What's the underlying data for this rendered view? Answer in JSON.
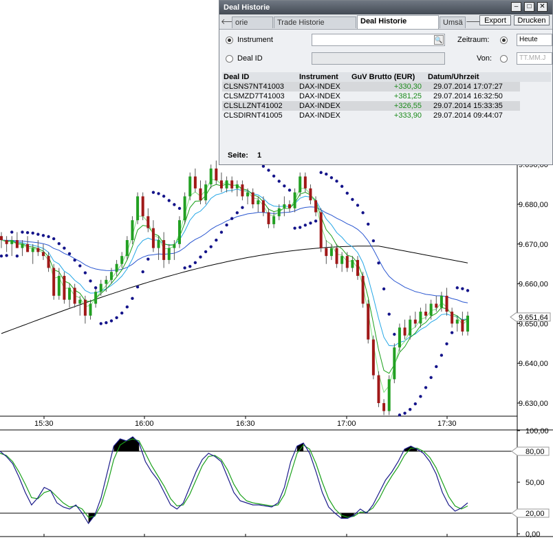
{
  "window": {
    "title": "Deal Historie",
    "buttons": {
      "minimize": "–",
      "maximize": "□",
      "close": "✕"
    }
  },
  "tabs": [
    {
      "label": "orie",
      "active": false
    },
    {
      "label": "Trade Historie",
      "active": false
    },
    {
      "label": "Deal Historie",
      "active": true
    },
    {
      "label": "Umsä",
      "active": false
    }
  ],
  "toolbar": {
    "prev": "🡐",
    "next": "🡒",
    "export_label": "Export",
    "print_label": "Drucken"
  },
  "filters": {
    "instrument_label": "Instrument",
    "instrument_value": "",
    "deal_id_label": "Deal ID",
    "zeitraum_label": "Zeitraum:",
    "zeitraum_option": "Heute",
    "von_label": "Von:",
    "von_placeholder": "TT.MM.J",
    "search_icon": "🔍"
  },
  "table": {
    "headers": [
      "Deal ID",
      "Instrument",
      "GuV Brutto (EUR)",
      "Datum/Uhrzeit"
    ],
    "rows": [
      [
        "CLSNS7NT41003",
        "DAX-INDEX",
        "+330,30",
        "29.07.2014 17:07:27"
      ],
      [
        "CLSMZD7T41003",
        "DAX-INDEX",
        "+381,25",
        "29.07.2014 16:32:50"
      ],
      [
        "CLSLLZNT41002",
        "DAX-INDEX",
        "+326,55",
        "29.07.2014 15:33:35"
      ],
      [
        "CLSDIRNT41005",
        "DAX-INDEX",
        "+333,90",
        "29.07.2014 09:44:07"
      ]
    ]
  },
  "paging": {
    "label": "Seite:",
    "value": "1"
  },
  "chart_data": {
    "type": "candlestick",
    "x_ticks": [
      "15:30",
      "16:00",
      "16:30",
      "17:00",
      "17:30"
    ],
    "y_ticks": [
      "9.630,00",
      "9.640,00",
      "9.650,00",
      "9.660,00",
      "9.670,00",
      "9.680,00",
      "9.690,00"
    ],
    "ylim": [
      9625,
      9695
    ],
    "current_price_label": "9.651,64",
    "current_price": 9651.64,
    "colors": {
      "up": "#22a022",
      "down": "#a01818",
      "sar": "#14148a",
      "ma_slow": "#000000",
      "ma_blue": "#2855d0",
      "ma_cyan": "#23a6e6",
      "ma_green": "#19a019"
    },
    "candles": [
      [
        9672,
        9673,
        9669,
        9671
      ],
      [
        9671,
        9672,
        9668,
        9670
      ],
      [
        9670,
        9672,
        9667,
        9671
      ],
      [
        9671,
        9673,
        9669,
        9669
      ],
      [
        9669,
        9671,
        9667,
        9670
      ],
      [
        9670,
        9672,
        9668,
        9668
      ],
      [
        9668,
        9670,
        9665,
        9669
      ],
      [
        9669,
        9671,
        9667,
        9668
      ],
      [
        9668,
        9670,
        9666,
        9667
      ],
      [
        9667,
        9668,
        9663,
        9664
      ],
      [
        9664,
        9665,
        9656,
        9657
      ],
      [
        9657,
        9664,
        9656,
        9662
      ],
      [
        9662,
        9663,
        9655,
        9656
      ],
      [
        9656,
        9660,
        9654,
        9659
      ],
      [
        9659,
        9660,
        9654,
        9655
      ],
      [
        9655,
        9657,
        9652,
        9656
      ],
      [
        9656,
        9657,
        9650,
        9652
      ],
      [
        9652,
        9656,
        9651,
        9655
      ],
      [
        9655,
        9659,
        9654,
        9658
      ],
      [
        9658,
        9661,
        9657,
        9660
      ],
      [
        9660,
        9662,
        9658,
        9661
      ],
      [
        9661,
        9664,
        9660,
        9663
      ],
      [
        9663,
        9666,
        9662,
        9665
      ],
      [
        9665,
        9668,
        9664,
        9667
      ],
      [
        9667,
        9672,
        9666,
        9671
      ],
      [
        9671,
        9677,
        9670,
        9676
      ],
      [
        9676,
        9683,
        9675,
        9682
      ],
      [
        9682,
        9683,
        9676,
        9677
      ],
      [
        9677,
        9679,
        9673,
        9674
      ],
      [
        9674,
        9676,
        9668,
        9669
      ],
      [
        9669,
        9672,
        9666,
        9671
      ],
      [
        9671,
        9673,
        9664,
        9666
      ],
      [
        9666,
        9670,
        9665,
        9669
      ],
      [
        9669,
        9671,
        9666,
        9670
      ],
      [
        9670,
        9677,
        9669,
        9676
      ],
      [
        9676,
        9683,
        9675,
        9682
      ],
      [
        9682,
        9688,
        9681,
        9687
      ],
      [
        9687,
        9689,
        9683,
        9684
      ],
      [
        9684,
        9686,
        9680,
        9681
      ],
      [
        9681,
        9686,
        9680,
        9685
      ],
      [
        9685,
        9690,
        9684,
        9689
      ],
      [
        9689,
        9691,
        9685,
        9686
      ],
      [
        9686,
        9688,
        9683,
        9684
      ],
      [
        9684,
        9687,
        9683,
        9686
      ],
      [
        9686,
        9687,
        9683,
        9684
      ],
      [
        9684,
        9686,
        9682,
        9685
      ],
      [
        9685,
        9686,
        9681,
        9682
      ],
      [
        9682,
        9684,
        9680,
        9683
      ],
      [
        9683,
        9684,
        9679,
        9680
      ],
      [
        9680,
        9682,
        9678,
        9681
      ],
      [
        9681,
        9682,
        9677,
        9678
      ],
      [
        9678,
        9679,
        9674,
        9675
      ],
      [
        9675,
        9678,
        9674,
        9677
      ],
      [
        9677,
        9680,
        9676,
        9679
      ],
      [
        9679,
        9682,
        9677,
        9680
      ],
      [
        9680,
        9681,
        9678,
        9679
      ],
      [
        9679,
        9684,
        9678,
        9683
      ],
      [
        9683,
        9688,
        9682,
        9687
      ],
      [
        9687,
        9688,
        9683,
        9684
      ],
      [
        9684,
        9685,
        9680,
        9681
      ],
      [
        9681,
        9682,
        9677,
        9678
      ],
      [
        9678,
        9679,
        9668,
        9669
      ],
      [
        9669,
        9671,
        9665,
        9667
      ],
      [
        9667,
        9670,
        9666,
        9669
      ],
      [
        9669,
        9670,
        9664,
        9665
      ],
      [
        9665,
        9668,
        9663,
        9667
      ],
      [
        9667,
        9668,
        9663,
        9664
      ],
      [
        9664,
        9667,
        9663,
        9666
      ],
      [
        9666,
        9667,
        9661,
        9662
      ],
      [
        9662,
        9663,
        9654,
        9655
      ],
      [
        9655,
        9656,
        9645,
        9646
      ],
      [
        9646,
        9647,
        9636,
        9637
      ],
      [
        9637,
        9638,
        9629,
        9630
      ],
      [
        9630,
        9631,
        9627,
        9628
      ],
      [
        9628,
        9637,
        9627,
        9636
      ],
      [
        9636,
        9645,
        9635,
        9644
      ],
      [
        9644,
        9650,
        9643,
        9649
      ],
      [
        9649,
        9651,
        9646,
        9647
      ],
      [
        9647,
        9652,
        9646,
        9651
      ],
      [
        9651,
        9653,
        9649,
        9650
      ],
      [
        9650,
        9654,
        9649,
        9653
      ],
      [
        9653,
        9655,
        9651,
        9652
      ],
      [
        9652,
        9656,
        9651,
        9655
      ],
      [
        9655,
        9657,
        9653,
        9654
      ],
      [
        9654,
        9658,
        9653,
        9657
      ],
      [
        9657,
        9659,
        9652,
        9653
      ],
      [
        9653,
        9654,
        9649,
        9650
      ],
      [
        9650,
        9652,
        9648,
        9651
      ],
      [
        9651,
        9653,
        9647,
        9648
      ],
      [
        9648,
        9653,
        9647,
        9652
      ]
    ],
    "stochastic": {
      "ylim": [
        0,
        100
      ],
      "y_ticks": [
        "0,00",
        "20,00",
        "50,00",
        "80,00",
        "100,00"
      ],
      "levels": [
        20,
        80
      ],
      "k": [
        80,
        75,
        68,
        55,
        40,
        28,
        35,
        45,
        42,
        30,
        26,
        24,
        28,
        20,
        10,
        18,
        35,
        60,
        85,
        92,
        90,
        94,
        88,
        70,
        60,
        52,
        40,
        28,
        24,
        30,
        45,
        60,
        72,
        78,
        75,
        70,
        55,
        40,
        32,
        30,
        28,
        28,
        27,
        26,
        30,
        45,
        70,
        85,
        88,
        78,
        60,
        40,
        26,
        20,
        15,
        15,
        18,
        24,
        20,
        28,
        40,
        52,
        60,
        70,
        82,
        85,
        82,
        78,
        70,
        58,
        40,
        28,
        22,
        25,
        30
      ],
      "d": [
        78,
        76,
        70,
        60,
        48,
        35,
        34,
        40,
        42,
        36,
        30,
        26,
        27,
        24,
        16,
        17,
        28,
        48,
        72,
        86,
        90,
        92,
        90,
        78,
        66,
        56,
        46,
        34,
        27,
        28,
        38,
        52,
        66,
        75,
        76,
        72,
        62,
        48,
        38,
        32,
        30,
        29,
        28,
        27,
        28,
        38,
        58,
        78,
        86,
        82,
        68,
        50,
        34,
        24,
        18,
        16,
        17,
        21,
        21,
        25,
        34,
        46,
        56,
        65,
        76,
        83,
        83,
        80,
        74,
        64,
        50,
        36,
        27,
        24,
        27
      ]
    }
  }
}
